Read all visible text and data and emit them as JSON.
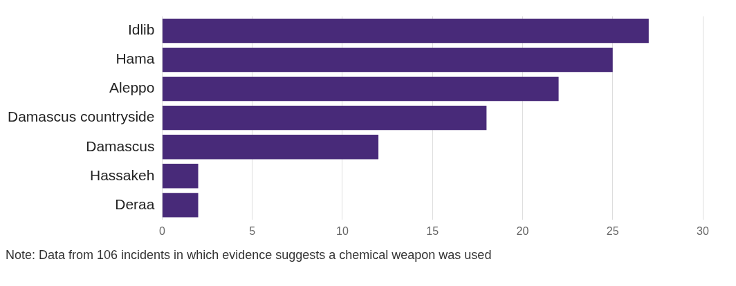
{
  "chart_data": {
    "type": "bar",
    "orientation": "horizontal",
    "categories": [
      "Idlib",
      "Hama",
      "Aleppo",
      "Damascus countryside",
      "Damascus",
      "Hassakeh",
      "Deraa"
    ],
    "values": [
      27,
      25,
      22,
      18,
      12,
      2,
      2
    ],
    "color": "#482a79",
    "xlim": [
      0,
      30
    ],
    "xticks": [
      0,
      5,
      10,
      15,
      20,
      25,
      30
    ],
    "grid": "x",
    "legend": false,
    "annotations": [
      "Note: Data from 106 incidents in which evidence suggests a chemical weapon was used"
    ]
  }
}
